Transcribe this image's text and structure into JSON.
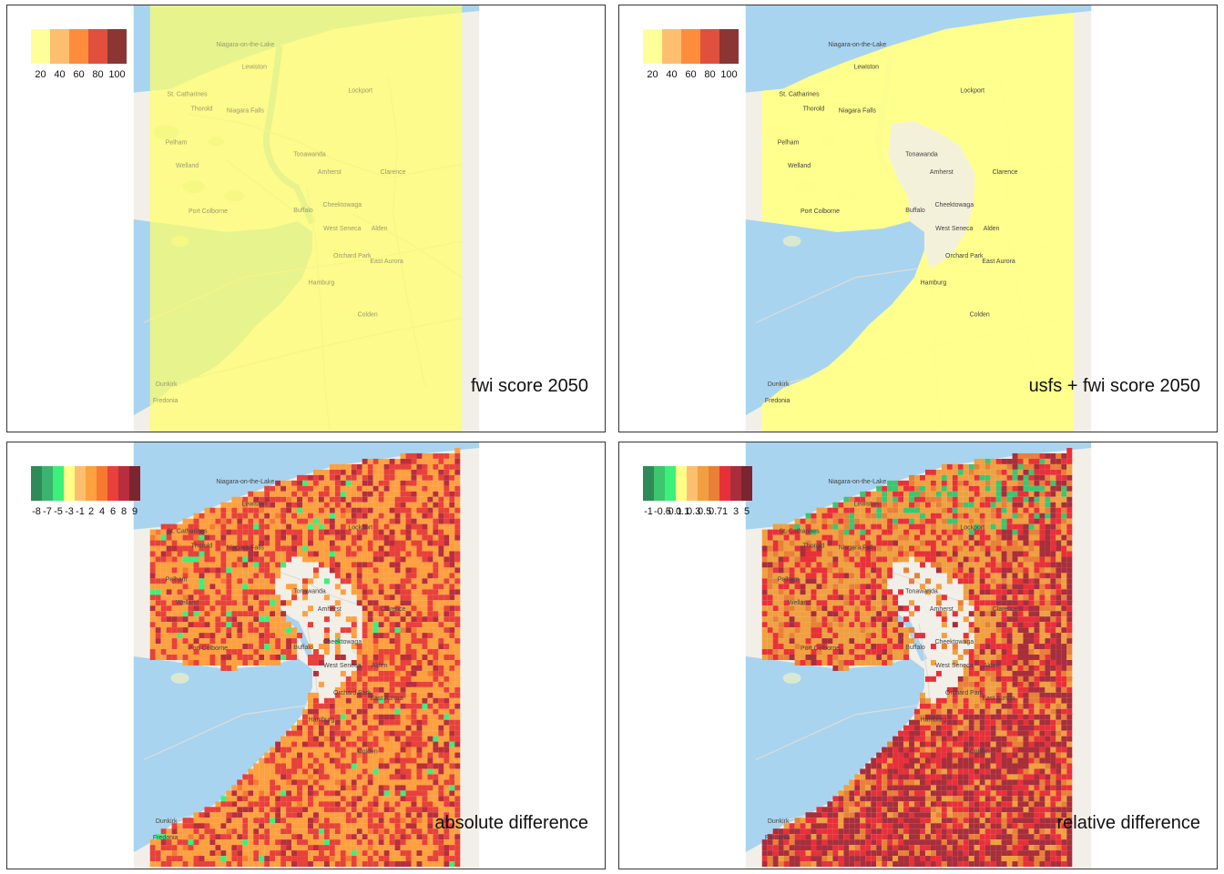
{
  "panels": [
    {
      "id": "fwi",
      "title": "fwi score 2050",
      "legend": {
        "labels": [
          "20",
          "40",
          "60",
          "80",
          "100"
        ],
        "colors": [
          "#ffff99",
          "#fdbf6f",
          "#fd8d3c",
          "#e0503c",
          "#8b3535"
        ]
      },
      "overlay": "uniform"
    },
    {
      "id": "usfs_fwi",
      "title": "usfs + fwi score 2050",
      "legend": {
        "labels": [
          "20",
          "40",
          "60",
          "80",
          "100"
        ],
        "colors": [
          "#ffff99",
          "#fdbf6f",
          "#fd8d3c",
          "#e0503c",
          "#8b3535"
        ]
      },
      "overlay": "land"
    },
    {
      "id": "abs_diff",
      "title": "absolute difference",
      "legend": {
        "labels": [
          "-8",
          "-7",
          "-5",
          "-3",
          "-1",
          "2",
          "4",
          "6",
          "8",
          "9"
        ],
        "colors": [
          "#2e8b57",
          "#3cb371",
          "#3cf07a",
          "#ffff88",
          "#fdbf6f",
          "#fda040",
          "#f57a30",
          "#e8403a",
          "#b82e3c",
          "#7a2530"
        ]
      },
      "overlay": "pixel_abs"
    },
    {
      "id": "rel_diff",
      "title": "relative difference",
      "legend": {
        "labels": [
          "-1",
          "-0.5",
          "-0.1",
          "0.1",
          "0.3",
          "0.5",
          "0.7",
          "1",
          "3",
          "5"
        ],
        "colors": [
          "#2e8b57",
          "#3cc66e",
          "#3cf07a",
          "#ffff88",
          "#fdbf6f",
          "#f0a040",
          "#e88038",
          "#e8303a",
          "#a82e3c",
          "#7a2530"
        ]
      },
      "overlay": "pixel_rel"
    }
  ],
  "places": [
    "Niagara-on-the-Lake",
    "Lewiston",
    "St. Catharines",
    "Thorold",
    "Niagara Falls",
    "Lockport",
    "Pelham",
    "Welland",
    "Tonawanda",
    "Amherst",
    "Clarence",
    "Cheektowaga",
    "Buffalo",
    "West Seneca",
    "Alden",
    "Port Colborne",
    "Orchard Park",
    "East Aurora",
    "Hamburg",
    "Colden",
    "Dunkirk",
    "Fredonia"
  ]
}
